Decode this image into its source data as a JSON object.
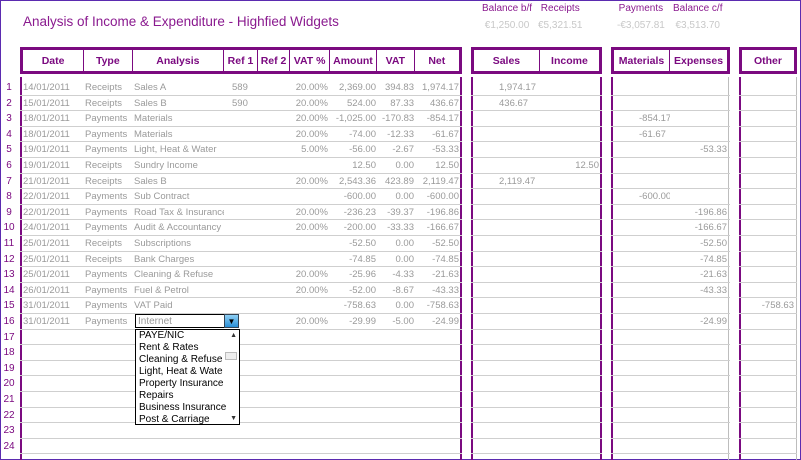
{
  "title": "Analysis of Income & Expenditure - Highfied Widgets",
  "summary": [
    {
      "label": "Balance b/f",
      "value": "€1,250.00"
    },
    {
      "label": "Receipts",
      "value": "€5,321.51"
    },
    {
      "label": "Payments",
      "value": "-€3,057.81"
    },
    {
      "label": "Balance c/f",
      "value": "€3,513.70"
    }
  ],
  "headers": {
    "main": [
      "Date",
      "Type",
      "Analysis",
      "Ref 1",
      "Ref 2",
      "VAT %",
      "Amount",
      "VAT",
      "Net"
    ],
    "income": [
      "Sales",
      "Income"
    ],
    "expense": [
      "Materials",
      "Expenses"
    ],
    "other": [
      "Other"
    ]
  },
  "row_numbers": [
    "1",
    "2",
    "3",
    "4",
    "5",
    "6",
    "7",
    "8",
    "9",
    "10",
    "11",
    "12",
    "13",
    "14",
    "15",
    "16",
    "17",
    "18",
    "19",
    "20",
    "21",
    "22",
    "23",
    "24"
  ],
  "rows": [
    [
      "14/01/2011",
      "Receipts",
      "Sales A",
      "589",
      "",
      "20.00%",
      "2,369.00",
      "394.83",
      "1,974.17",
      "1,974.17",
      "",
      "",
      "",
      ""
    ],
    [
      "15/01/2011",
      "Receipts",
      "Sales B",
      "590",
      "",
      "20.00%",
      "524.00",
      "87.33",
      "436.67",
      "436.67",
      "",
      "",
      "",
      ""
    ],
    [
      "18/01/2011",
      "Payments",
      "Materials",
      "",
      "",
      "20.00%",
      "-1,025.00",
      "-170.83",
      "-854.17",
      "",
      "",
      "-854.17",
      "",
      ""
    ],
    [
      "18/01/2011",
      "Payments",
      "Materials",
      "",
      "",
      "20.00%",
      "-74.00",
      "-12.33",
      "-61.67",
      "",
      "",
      "-61.67",
      "",
      ""
    ],
    [
      "19/01/2011",
      "Payments",
      "Light, Heat & Water",
      "",
      "",
      "5.00%",
      "-56.00",
      "-2.67",
      "-53.33",
      "",
      "",
      "",
      "-53.33",
      ""
    ],
    [
      "19/01/2011",
      "Receipts",
      "Sundry Income",
      "",
      "",
      "",
      "12.50",
      "0.00",
      "12.50",
      "",
      "12.50",
      "",
      "",
      ""
    ],
    [
      "21/01/2011",
      "Receipts",
      "Sales B",
      "",
      "",
      "20.00%",
      "2,543.36",
      "423.89",
      "2,119.47",
      "2,119.47",
      "",
      "",
      "",
      ""
    ],
    [
      "22/01/2011",
      "Payments",
      "Sub Contract",
      "",
      "",
      "",
      "-600.00",
      "0.00",
      "-600.00",
      "",
      "",
      "-600.00",
      "",
      ""
    ],
    [
      "22/01/2011",
      "Payments",
      "Road Tax & Insurance",
      "",
      "",
      "20.00%",
      "-236.23",
      "-39.37",
      "-196.86",
      "",
      "",
      "",
      "-196.86",
      ""
    ],
    [
      "24/01/2011",
      "Payments",
      "Audit & Accountancy",
      "",
      "",
      "20.00%",
      "-200.00",
      "-33.33",
      "-166.67",
      "",
      "",
      "",
      "-166.67",
      ""
    ],
    [
      "25/01/2011",
      "Receipts",
      "Subscriptions",
      "",
      "",
      "",
      "-52.50",
      "0.00",
      "-52.50",
      "",
      "",
      "",
      "-52.50",
      ""
    ],
    [
      "25/01/2011",
      "Receipts",
      "Bank Charges",
      "",
      "",
      "",
      "-74.85",
      "0.00",
      "-74.85",
      "",
      "",
      "",
      "-74.85",
      ""
    ],
    [
      "25/01/2011",
      "Payments",
      "Cleaning & Refuse",
      "",
      "",
      "20.00%",
      "-25.96",
      "-4.33",
      "-21.63",
      "",
      "",
      "",
      "-21.63",
      ""
    ],
    [
      "26/01/2011",
      "Payments",
      "Fuel & Petrol",
      "",
      "",
      "20.00%",
      "-52.00",
      "-8.67",
      "-43.33",
      "",
      "",
      "",
      "-43.33",
      ""
    ],
    [
      "31/01/2011",
      "Payments",
      "VAT Paid",
      "",
      "",
      "",
      "-758.63",
      "0.00",
      "-758.63",
      "",
      "",
      "",
      "",
      "-758.63"
    ],
    [
      "31/01/2011",
      "Payments",
      "",
      "",
      "",
      "20.00%",
      "-29.99",
      "-5.00",
      "-24.99",
      "",
      "",
      "",
      "-24.99",
      ""
    ]
  ],
  "dropdown": {
    "value": "Internet",
    "options": [
      "PAYE/NIC",
      "Rent & Rates",
      "Cleaning & Refuse",
      "Light, Heat & Wate",
      "Property Insurance",
      "Repairs",
      "Business Insurance",
      "Post & Carriage"
    ]
  },
  "colors": {
    "accent": "#7b0a80",
    "title": "#8a1a8f",
    "text": "#9a9a9a"
  }
}
